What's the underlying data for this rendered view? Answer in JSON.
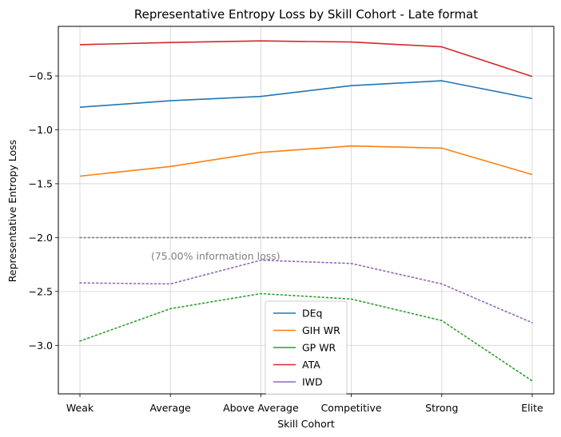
{
  "chart_data": {
    "type": "line",
    "title": "Representative Entropy Loss by Skill Cohort - Late format",
    "xlabel": "Skill Cohort",
    "ylabel": "Representative Entropy Loss",
    "categories": [
      "Weak",
      "Average",
      "Above Average",
      "Competitive",
      "Strong",
      "Elite"
    ],
    "ylim": [
      -3.45,
      -0.04
    ],
    "yticks": [
      -3.0,
      -2.5,
      -2.0,
      -1.5,
      -1.0,
      -0.5
    ],
    "ytick_labels": [
      "−3.0",
      "−2.5",
      "−2.0",
      "−1.5",
      "−1.0",
      "−0.5"
    ],
    "grid": true,
    "legend_position": "lower-center",
    "series": [
      {
        "name": "DEq",
        "style": "solid",
        "color": "#1f77b4",
        "values": [
          -0.79,
          -0.73,
          -0.69,
          -0.59,
          -0.545,
          -0.71
        ]
      },
      {
        "name": "GIH WR",
        "style": "solid",
        "color": "#ff7f0e",
        "values": [
          -1.43,
          -1.34,
          -1.21,
          -1.15,
          -1.17,
          -1.415
        ]
      },
      {
        "name": "GP WR",
        "style": "dotted",
        "color": "#2ca02c",
        "values": [
          -2.96,
          -2.66,
          -2.52,
          -2.57,
          -2.77,
          -3.33
        ]
      },
      {
        "name": "ATA",
        "style": "solid",
        "color": "#d62728",
        "values": [
          -0.21,
          -0.19,
          -0.175,
          -0.185,
          -0.23,
          -0.505
        ]
      },
      {
        "name": "IWD",
        "style": "dotted",
        "color": "#9467bd",
        "values": [
          -2.42,
          -2.43,
          -2.21,
          -2.24,
          -2.43,
          -2.79
        ]
      }
    ],
    "reference_line": {
      "y": -2.0,
      "style": "dotted",
      "color": "#808080"
    },
    "annotation": {
      "text": "(75.00% information loss)",
      "x": 1.5,
      "y": -2.17
    }
  }
}
